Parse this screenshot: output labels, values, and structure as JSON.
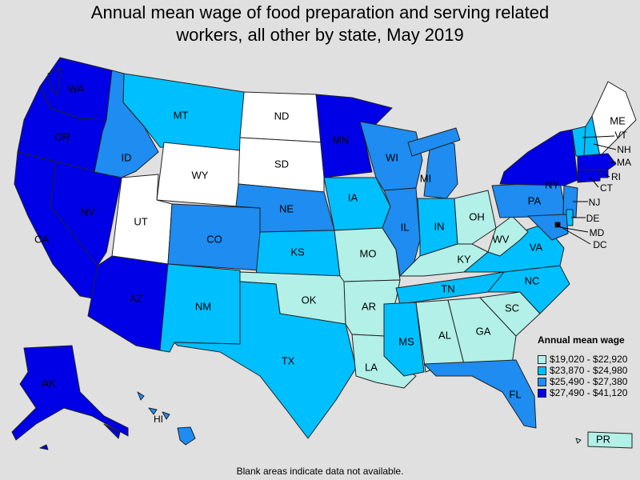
{
  "title_lines": [
    "Annual mean wage of food preparation and serving related",
    "workers, all other by state, May 2019"
  ],
  "legend": {
    "title": "Annual mean wage",
    "bins": [
      {
        "label": "$19,020 - $22,920",
        "color": "#b2f0e8"
      },
      {
        "label": "$23,870 - $24,980",
        "color": "#00bfff"
      },
      {
        "label": "$25,490 - $27,380",
        "color": "#1e8cf0"
      },
      {
        "label": "$27,490 - $41,120",
        "color": "#0000e6"
      }
    ],
    "no_data_color": "#ffffff"
  },
  "footnote": "Blank areas indicate data not available.",
  "states": [
    {
      "abbr": "WA",
      "bin": 3
    },
    {
      "abbr": "OR",
      "bin": 3
    },
    {
      "abbr": "CA",
      "bin": 3
    },
    {
      "abbr": "NV",
      "bin": 3
    },
    {
      "abbr": "ID",
      "bin": 2
    },
    {
      "abbr": "MT",
      "bin": 1
    },
    {
      "abbr": "WY",
      "bin": null
    },
    {
      "abbr": "UT",
      "bin": null
    },
    {
      "abbr": "AZ",
      "bin": 3
    },
    {
      "abbr": "CO",
      "bin": 2
    },
    {
      "abbr": "NM",
      "bin": 1
    },
    {
      "abbr": "ND",
      "bin": null
    },
    {
      "abbr": "SD",
      "bin": null
    },
    {
      "abbr": "NE",
      "bin": 2
    },
    {
      "abbr": "KS",
      "bin": 1
    },
    {
      "abbr": "OK",
      "bin": 0
    },
    {
      "abbr": "TX",
      "bin": 1
    },
    {
      "abbr": "MN",
      "bin": 3
    },
    {
      "abbr": "IA",
      "bin": 1
    },
    {
      "abbr": "MO",
      "bin": 0
    },
    {
      "abbr": "AR",
      "bin": 0
    },
    {
      "abbr": "LA",
      "bin": 0
    },
    {
      "abbr": "WI",
      "bin": 2
    },
    {
      "abbr": "IL",
      "bin": 2
    },
    {
      "abbr": "MI",
      "bin": 2
    },
    {
      "abbr": "IN",
      "bin": 1
    },
    {
      "abbr": "OH",
      "bin": 0
    },
    {
      "abbr": "KY",
      "bin": 0
    },
    {
      "abbr": "TN",
      "bin": 1
    },
    {
      "abbr": "MS",
      "bin": 1
    },
    {
      "abbr": "AL",
      "bin": 0
    },
    {
      "abbr": "GA",
      "bin": 0
    },
    {
      "abbr": "FL",
      "bin": 2
    },
    {
      "abbr": "SC",
      "bin": 0
    },
    {
      "abbr": "NC",
      "bin": 1
    },
    {
      "abbr": "VA",
      "bin": 1
    },
    {
      "abbr": "WV",
      "bin": 0
    },
    {
      "abbr": "PA",
      "bin": 2
    },
    {
      "abbr": "NY",
      "bin": 3
    },
    {
      "abbr": "VT",
      "bin": 1
    },
    {
      "abbr": "NH",
      "bin": 1
    },
    {
      "abbr": "ME",
      "bin": null
    },
    {
      "abbr": "MA",
      "bin": 3
    },
    {
      "abbr": "RI",
      "bin": 3
    },
    {
      "abbr": "CT",
      "bin": 3
    },
    {
      "abbr": "NJ",
      "bin": 2
    },
    {
      "abbr": "DE",
      "bin": 1
    },
    {
      "abbr": "MD",
      "bin": 2
    },
    {
      "abbr": "DC",
      "bin": 3
    },
    {
      "abbr": "AK",
      "bin": 3
    },
    {
      "abbr": "HI",
      "bin": 2
    },
    {
      "abbr": "PR",
      "bin": 0
    }
  ]
}
